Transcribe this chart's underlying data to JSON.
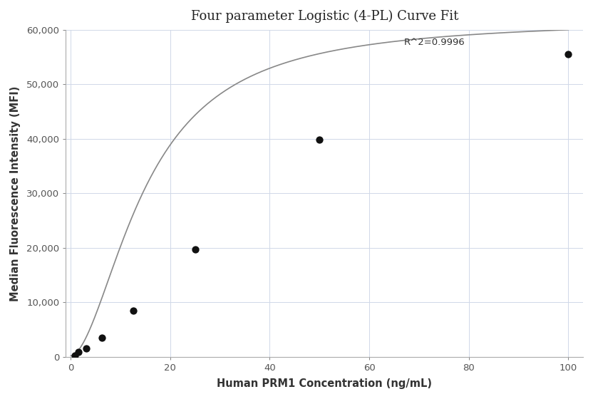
{
  "title": "Four parameter Logistic (4-PL) Curve Fit",
  "xlabel": "Human PRM1 Concentration (ng/mL)",
  "ylabel": "Median Fluorescence Intensity (MFI)",
  "r_squared": "R^2=0.9996",
  "data_x": [
    0.781,
    1.563,
    3.125,
    6.25,
    12.5,
    25,
    50,
    100
  ],
  "data_y": [
    270,
    900,
    1500,
    3500,
    8500,
    19700,
    39800,
    55500
  ],
  "xlim": [
    -1,
    103
  ],
  "ylim": [
    0,
    60000
  ],
  "yticks": [
    0,
    10000,
    20000,
    30000,
    40000,
    50000,
    60000
  ],
  "xticks": [
    0,
    20,
    40,
    60,
    80,
    100
  ],
  "dot_color": "#111111",
  "line_color": "#888888",
  "background_color": "#ffffff",
  "grid_color": "#d0d8e8",
  "title_fontsize": 13,
  "label_fontsize": 10.5,
  "tick_fontsize": 9.5,
  "annotation_fontsize": 9.5
}
